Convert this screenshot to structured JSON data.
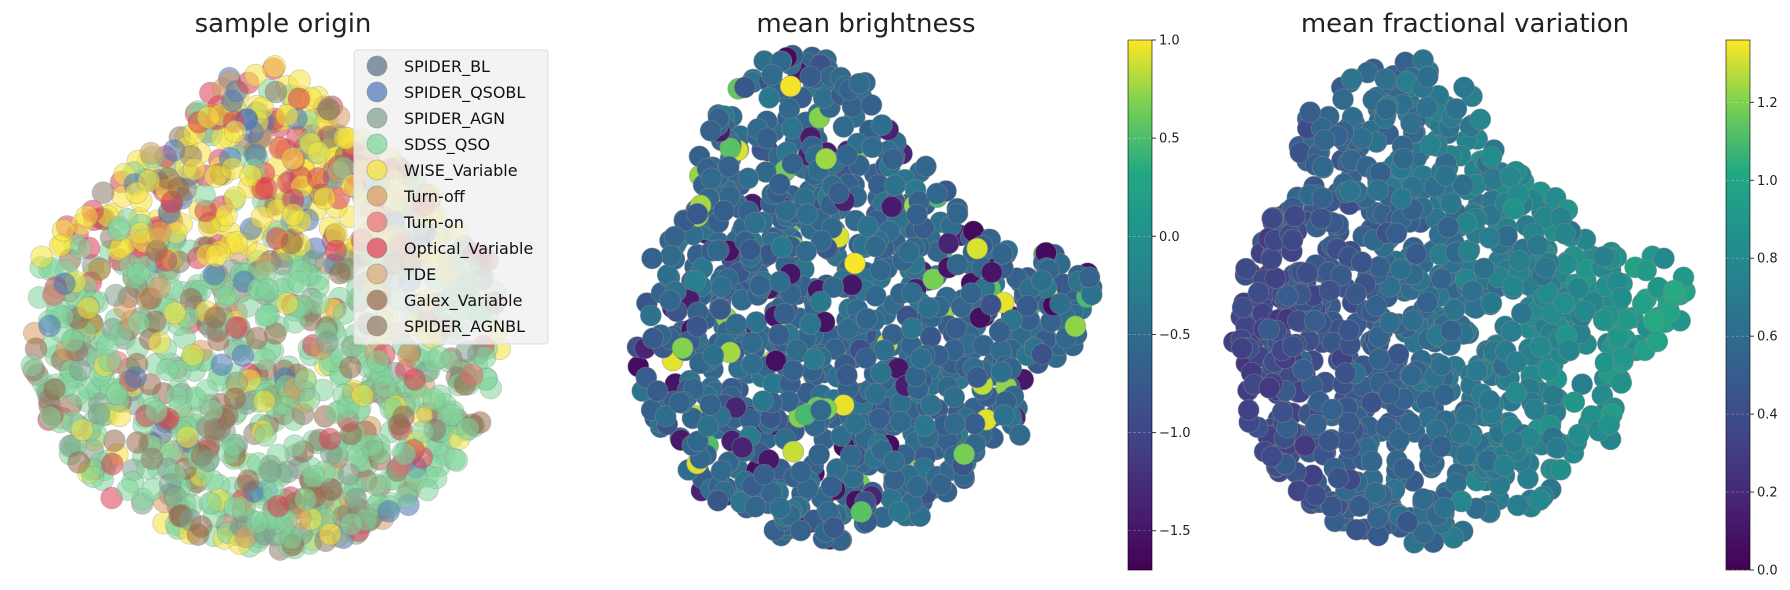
{
  "chart_data": [
    {
      "type": "scatter",
      "title": "sample origin",
      "legend_position": "top-right",
      "categories": [
        "SPIDER_BL",
        "SPIDER_QSOBL",
        "SPIDER_AGN",
        "SDSS_QSO",
        "WISE_Variable",
        "Turn-off",
        "Turn-on",
        "Optical_Variable",
        "TDE",
        "Galex_Variable",
        "SPIDER_AGNBL"
      ],
      "colors": [
        "#556b85",
        "#4a74b8",
        "#7d9c8c",
        "#7fd69a",
        "#f5e43a",
        "#d99a5e",
        "#e87070",
        "#dd3c50",
        "#dca878",
        "#96684a",
        "#8e7a66"
      ],
      "legend_alpha": 0.7
    },
    {
      "type": "scatter",
      "title": "mean brightness",
      "colorbar": {
        "min": -1.7,
        "max": 1.0,
        "ticks": [
          1.0,
          0.5,
          0.0,
          -0.5,
          -1.0,
          -1.5
        ],
        "tick_labels": [
          "1.0",
          "0.5",
          "0.0",
          "−0.5",
          "−1.0",
          "−1.5"
        ],
        "colormap": "viridis"
      }
    },
    {
      "type": "scatter",
      "title": "mean fractional variation",
      "colorbar": {
        "min": 0.0,
        "max": 1.36,
        "ticks": [
          1.2,
          1.0,
          0.8,
          0.6,
          0.4,
          0.2,
          0.0
        ],
        "tick_labels": [
          "1.2",
          "1.0",
          "0.8",
          "0.6",
          "0.4",
          "0.2",
          "0.0"
        ],
        "colormap": "viridis"
      }
    }
  ]
}
